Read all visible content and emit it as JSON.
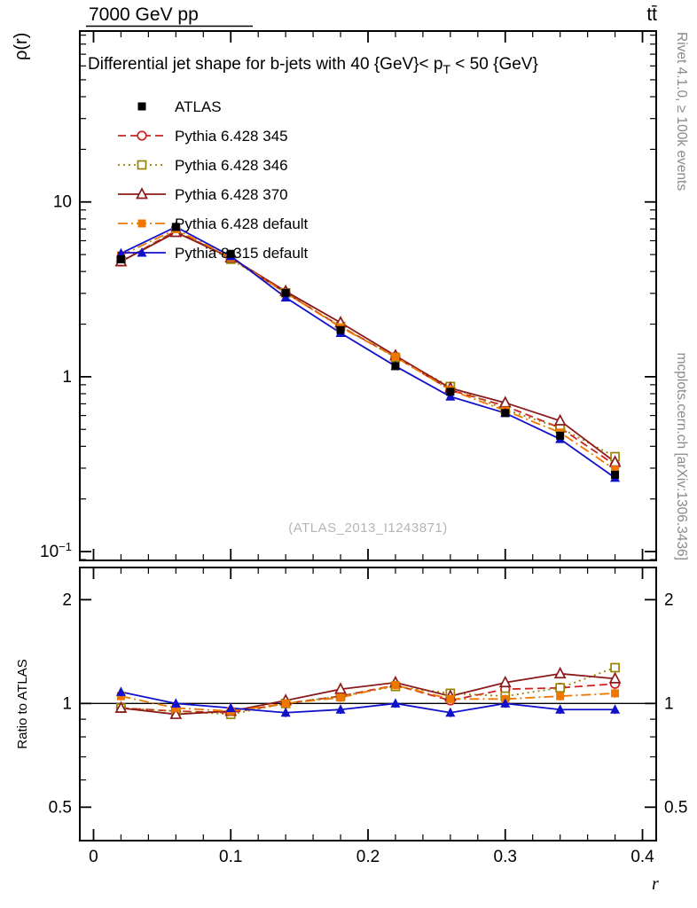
{
  "page": {
    "top_left": "7000 GeV pp",
    "top_right": "tt̄",
    "right_label_top": "Rivet 4.1.0, ≥ 100k events",
    "right_label_bottom": "mcplots.cern.ch [arXiv:1306.3436]"
  },
  "chart_data": {
    "type": "line",
    "title_parts": {
      "pre": "Differential jet shape for b-jets with 40 {GeV}< p",
      "sub": "T",
      "post": " < 50 {GeV}"
    },
    "xlabel": "r",
    "x": [
      0.02,
      0.06,
      0.1,
      0.14,
      0.18,
      0.22,
      0.26,
      0.3,
      0.34,
      0.38
    ],
    "xlim": [
      -0.01,
      0.41
    ],
    "xticks": [
      0,
      0.1,
      0.2,
      0.3,
      0.4
    ],
    "main": {
      "ylabel": "ρ(r)",
      "yscale": "log",
      "ylim": [
        0.089,
        95
      ],
      "yticks": [
        {
          "value": 10,
          "text": "10"
        },
        {
          "value": 1,
          "text": "1"
        },
        {
          "value": 0.1,
          "text": "10",
          "sup": "−1"
        }
      ],
      "watermark": "(ATLAS_2013_I1243871)"
    },
    "ratio": {
      "ylabel": "Ratio to ATLAS",
      "yscale": "log",
      "ylim": [
        0.4,
        2.48
      ],
      "refline": 1,
      "yticks": [
        {
          "value": 2,
          "text": "2"
        },
        {
          "value": 1,
          "text": "1"
        },
        {
          "value": 0.5,
          "text": "0.5"
        }
      ]
    },
    "point_errors": {
      "main": 0.035,
      "ratio": 0.03
    },
    "series": [
      {
        "name": "ATLAS",
        "color": "#000000",
        "line": "none",
        "marker": "square-filled",
        "values": [
          4.7,
          7.2,
          5.05,
          3.02,
          1.85,
          1.15,
          0.82,
          0.62,
          0.46,
          0.275
        ],
        "ratio": null
      },
      {
        "name": "Pythia 6.428 345",
        "color": "#cc2222",
        "line": "dashed",
        "marker": "circle-open",
        "values": [
          4.56,
          6.84,
          4.75,
          3.02,
          1.94,
          1.3,
          0.84,
          0.68,
          0.51,
          0.313
        ],
        "ratio": [
          0.97,
          0.95,
          0.94,
          1.0,
          1.05,
          1.13,
          1.02,
          1.1,
          1.11,
          1.14
        ]
      },
      {
        "name": "Pythia 6.428 346",
        "color": "#998200",
        "line": "dotted",
        "marker": "square-open",
        "values": [
          4.56,
          6.84,
          4.7,
          3.02,
          1.94,
          1.29,
          0.88,
          0.65,
          0.51,
          0.349
        ],
        "ratio": [
          0.97,
          0.95,
          0.93,
          1.0,
          1.05,
          1.12,
          1.07,
          1.05,
          1.11,
          1.27
        ]
      },
      {
        "name": "Pythia 6.428 370",
        "color": "#8b1a1a",
        "line": "solid",
        "marker": "triangle-open",
        "values": [
          4.56,
          6.7,
          4.8,
          3.08,
          2.04,
          1.32,
          0.86,
          0.71,
          0.56,
          0.325
        ],
        "ratio": [
          0.97,
          0.93,
          0.95,
          1.02,
          1.1,
          1.15,
          1.05,
          1.15,
          1.22,
          1.18
        ]
      },
      {
        "name": "Pythia 6.428 default",
        "color": "#ee7700",
        "line": "dashdot",
        "marker": "square-filled",
        "values": [
          4.94,
          6.98,
          4.8,
          3.02,
          1.92,
          1.3,
          0.84,
          0.64,
          0.48,
          0.294
        ],
        "ratio": [
          1.05,
          0.97,
          0.95,
          1.0,
          1.04,
          1.13,
          1.03,
          1.03,
          1.05,
          1.07
        ]
      },
      {
        "name": "Pythia 8.315 default",
        "color": "#1111cc",
        "line": "solid",
        "marker": "triangle-filled",
        "values": [
          5.08,
          7.2,
          4.9,
          2.84,
          1.78,
          1.15,
          0.77,
          0.62,
          0.44,
          0.264
        ],
        "ratio": [
          1.08,
          1.0,
          0.97,
          0.94,
          0.96,
          1.0,
          0.94,
          1.0,
          0.96,
          0.96
        ]
      }
    ]
  }
}
